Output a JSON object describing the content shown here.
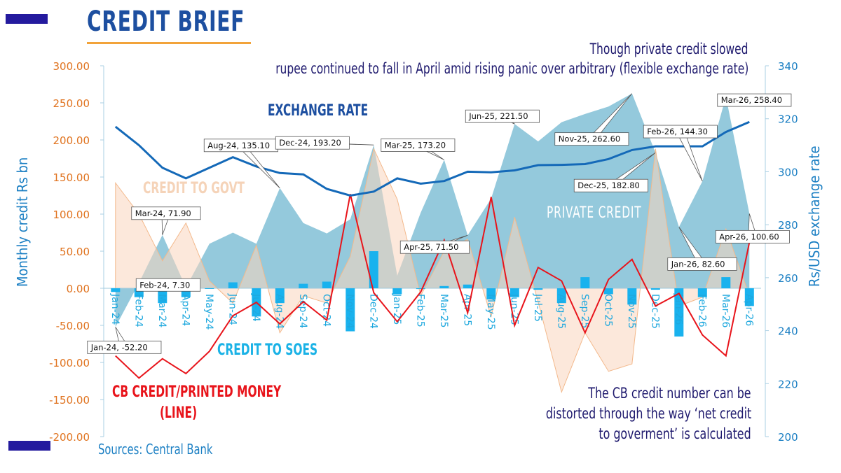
{
  "header": {
    "brand": "CREDIT BRIEF",
    "subtitle_line1": "Though private credit slowed",
    "subtitle_line2": "rupee continued to fall in April amid rising panic over arbitrary (flexible exchange rate)"
  },
  "annotations": {
    "exchange_rate": "EXCHANGE RATE",
    "credit_to_govt": "CREDIT TO GOVT",
    "private_credit": "PRIVATE  CREDIT",
    "credit_to_soes": "CREDIT TO SOES",
    "cb_credit_line1": "CB CREDIT/PRINTED MONEY",
    "cb_credit_line2": "(LINE)",
    "note_line1": "The CB credit number can be",
    "note_line2": "distorted through the way ‘net credit",
    "note_line3": "to goverment’ is calculated",
    "sources": "Sources: Central  Bank"
  },
  "colors": {
    "private_credit": "#8ec6da",
    "credit_to_govt": "#f9d6bd",
    "credit_to_soes": "#19b2ee",
    "cb_credit": "#e8141b",
    "exchange_rate": "#1469b8",
    "left_axis": "#e0731f",
    "right_axis": "#1b7fc3",
    "title": "#1d4fa0"
  },
  "chart_data": {
    "type": "area",
    "categories": [
      "Jan-24",
      "Feb-24",
      "Mar-24",
      "Apr-24",
      "May-24",
      "Jun-24",
      "Jul-24",
      "Aug-24",
      "Sep-24",
      "Oct-24",
      "Nov-24",
      "Dec-24",
      "Jan-25",
      "Feb-25",
      "Mar-25",
      "Apr-25",
      "May-25",
      "Jun-25",
      "Jul-25",
      "Aug-25",
      "Sep-25",
      "Oct-25",
      "Nov-25",
      "Dec-25",
      "Jan-26",
      "Feb-26",
      "Mar-26",
      "Apr-26"
    ],
    "tick_labels": [
      "Jan-24",
      "Feb-24",
      "Mar-24",
      "Apr-24",
      "May-24",
      "Jun-24",
      "Jul-24",
      "Aug-24",
      "Sep-24",
      "Oct-24",
      "Nov-24",
      "Dec-24",
      "Jan-25",
      "Feb-25",
      "Mar-25",
      "Apr-25",
      "May-25",
      "Jun-25",
      "Jul-25",
      "Aug-25",
      "Sep-25",
      "Oct-25",
      "Nov-25",
      "Dec-25",
      "Jan-26",
      "Feb-26",
      "Mar-26",
      "Apr-26"
    ],
    "left_axis": {
      "label": "Monthly credit Rs bn",
      "min": -200,
      "max": 300,
      "step": 50,
      "tick_labels": [
        "300.00",
        "250.00",
        "200.00",
        "150.00",
        "100.00",
        "50.00",
        "0.00",
        "-50.00",
        "-100.00",
        "-150.00",
        "-200.00"
      ]
    },
    "right_axis": {
      "label": "Rs/USD exchange rate",
      "min": 200,
      "max": 340,
      "step": 20,
      "tick_labels": [
        "340",
        "320",
        "300",
        "280",
        "260",
        "240",
        "220",
        "200"
      ]
    },
    "series": [
      {
        "name": "PRIVATE  CREDIT",
        "kind": "area",
        "axis": "left",
        "values": [
          -52.2,
          7.3,
          71.9,
          1.0,
          60.0,
          75.0,
          60.0,
          135.1,
          88.0,
          74.0,
          93.0,
          193.2,
          17.0,
          102.0,
          173.2,
          71.5,
          121.0,
          221.5,
          198.0,
          224.0,
          235.0,
          245.0,
          262.6,
          182.8,
          82.6,
          144.3,
          258.4,
          100.6
        ]
      },
      {
        "name": "CREDIT TO GOVT",
        "kind": "area",
        "axis": "left",
        "values": [
          142.0,
          100.0,
          37.0,
          88.0,
          10.0,
          -20.0,
          58.0,
          -60.0,
          -10.0,
          -20.0,
          43.0,
          188.0,
          120.0,
          -10.0,
          50.0,
          66.0,
          -38.0,
          96.0,
          -18.0,
          -140.0,
          -60.0,
          -112.0,
          -102.0,
          188.0,
          -24.0,
          -12.0,
          80.0,
          -10.0
        ]
      },
      {
        "name": "CREDIT TO SOES",
        "kind": "bar",
        "axis": "left",
        "values": [
          -5.0,
          -12.0,
          -20.0,
          -12.0,
          0.0,
          8.0,
          -38.0,
          -20.0,
          6.0,
          9.0,
          -58.0,
          50.0,
          -8.0,
          -1.0,
          3.0,
          5.0,
          -15.0,
          -12.0,
          -2.0,
          -20.0,
          15.0,
          -8.0,
          -22.0,
          -2.0,
          -65.0,
          -12.0,
          15.0,
          -24.0
        ]
      },
      {
        "name": "CB CREDIT/PRINTED MONEY",
        "kind": "line",
        "axis": "left",
        "values": [
          -91.0,
          -121.0,
          -95.0,
          -115.0,
          -85.0,
          -37.0,
          -19.0,
          -48.0,
          -18.0,
          -43.0,
          127.0,
          -6.0,
          -45.0,
          -5.0,
          65.0,
          -33.0,
          123.0,
          -50.0,
          28.0,
          10.0,
          -60.0,
          12.0,
          39.0,
          -24.0,
          -7.0,
          -63.0,
          -91.0,
          62.0
        ]
      },
      {
        "name": "EXCHANGE RATE",
        "kind": "line",
        "axis": "right",
        "values": [
          317.0,
          310.0,
          301.5,
          297.5,
          301.5,
          305.5,
          302.0,
          299.5,
          299.0,
          293.5,
          291.0,
          292.5,
          297.5,
          295.5,
          296.5,
          300.0,
          299.8,
          300.5,
          302.5,
          302.6,
          302.9,
          304.8,
          308.2,
          309.6,
          309.6,
          309.6,
          315.0,
          318.8
        ]
      }
    ],
    "callouts": [
      {
        "text": "Jan-24, -52.20",
        "series": "PRIVATE  CREDIT",
        "index": 0
      },
      {
        "text": "Feb-24, 7.30",
        "series": "PRIVATE  CREDIT",
        "index": 1
      },
      {
        "text": "Mar-24, 71.90",
        "series": "PRIVATE  CREDIT",
        "index": 2
      },
      {
        "text": "Aug-24, 135.10",
        "series": "PRIVATE  CREDIT",
        "index": 7
      },
      {
        "text": "Dec-24, 193.20",
        "series": "PRIVATE  CREDIT",
        "index": 11
      },
      {
        "text": "Mar-25, 173.20",
        "series": "PRIVATE  CREDIT",
        "index": 14
      },
      {
        "text": "Apr-25, 71.50",
        "series": "PRIVATE  CREDIT",
        "index": 15
      },
      {
        "text": "Jun-25, 221.50",
        "series": "PRIVATE  CREDIT",
        "index": 17
      },
      {
        "text": "Nov-25, 262.60",
        "series": "PRIVATE  CREDIT",
        "index": 22
      },
      {
        "text": "Dec-25, 182.80",
        "series": "PRIVATE  CREDIT",
        "index": 23
      },
      {
        "text": "Jan-26, 82.60",
        "series": "PRIVATE  CREDIT",
        "index": 24
      },
      {
        "text": "Feb-26, 144.30",
        "series": "PRIVATE  CREDIT",
        "index": 25
      },
      {
        "text": "Mar-26, 258.40",
        "series": "PRIVATE  CREDIT",
        "index": 26
      },
      {
        "text": "Apr-26, 100.60",
        "series": "PRIVATE  CREDIT",
        "index": 27
      }
    ],
    "grid": false,
    "legend": "none"
  }
}
